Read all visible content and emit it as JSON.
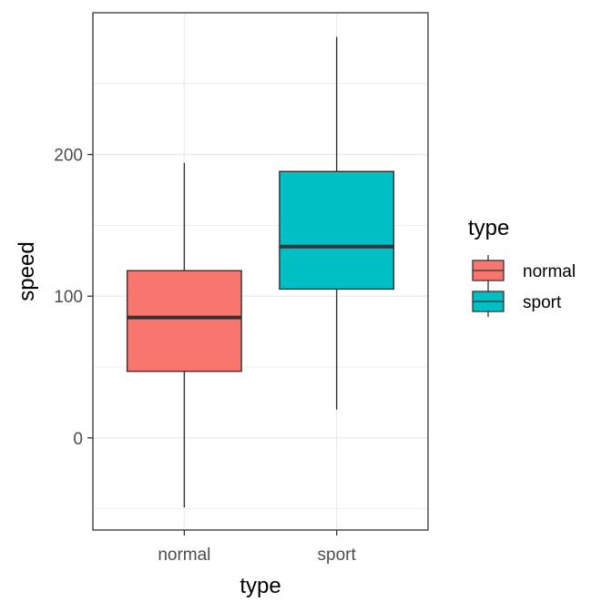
{
  "chart_data": {
    "type": "boxplot",
    "xlabel": "type",
    "ylabel": "speed",
    "categories": [
      "normal",
      "sport"
    ],
    "ylim": [
      -65,
      300
    ],
    "yticks": [
      0,
      100,
      200
    ],
    "grid": true,
    "legend": {
      "title": "type",
      "position": "right",
      "entries": [
        "normal",
        "sport"
      ]
    },
    "series": [
      {
        "category": "normal",
        "color": "#F8766D",
        "min": -49,
        "q1": 47,
        "median": 85,
        "q3": 118,
        "max": 194
      },
      {
        "category": "sport",
        "color": "#00BFC4",
        "min": 20,
        "q1": 105,
        "median": 135,
        "q3": 188,
        "max": 283
      }
    ]
  }
}
